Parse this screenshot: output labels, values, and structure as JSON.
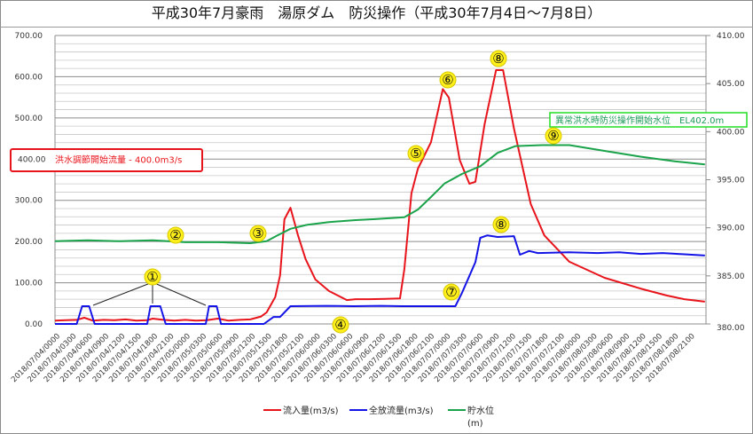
{
  "chart_data": {
    "type": "line",
    "title": "平成30年7月豪雨　湯原ダム　防災操作（平成30年7月4日～7月8日）",
    "x_unit": "hours since 2018/07/04 00:00",
    "xlim": [
      0,
      120
    ],
    "x_tick_labels": [
      "2018/07/04/0000",
      "2018/07/04/0300",
      "2018/07/04/0600",
      "2018/07/04/0900",
      "2018/07/04/1200",
      "2018/07/04/1500",
      "2018/07/04/1800",
      "2018/07/04/2100",
      "2018/07/05/0000",
      "2018/07/05/0300",
      "2018/07/05/0600",
      "2018/07/05/0900",
      "2018/07/05/1200",
      "2018/07/05/1500",
      "2018/07/05/1800",
      "2018/07/05/2100",
      "2018/07/06/0000",
      "2018/07/06/0300",
      "2018/07/06/0600",
      "2018/07/06/0900",
      "2018/07/06/1200",
      "2018/07/06/1500",
      "2018/07/06/1800",
      "2018/07/06/2100",
      "2018/07/07/0000",
      "2018/07/07/0300",
      "2018/07/07/0600",
      "2018/07/07/0900",
      "2018/07/07/1200",
      "2018/07/07/1500",
      "2018/07/07/1800",
      "2018/07/07/2100",
      "2018/07/08/0000",
      "2018/07/08/0300",
      "2018/07/08/0600",
      "2018/07/08/0900",
      "2018/07/08/1200",
      "2018/07/08/1500",
      "2018/07/08/1800",
      "2018/07/08/2100"
    ],
    "y_left": {
      "ylim": [
        0,
        700
      ],
      "ticks": [
        "0.00",
        "100.00",
        "200.00",
        "300.00",
        "400.00",
        "500.00",
        "600.00",
        "700.00"
      ]
    },
    "y_right": {
      "ylim": [
        380,
        410
      ],
      "ticks": [
        "380.00",
        "385.00",
        "390.00",
        "395.00",
        "400.00",
        "405.00",
        "410.00"
      ]
    },
    "grid": true,
    "legend_position": "bottom",
    "series": [
      {
        "name": "流入量(m3/s)",
        "axis": "left",
        "color": "#e8141c",
        "points": [
          [
            0,
            8
          ],
          [
            2,
            9
          ],
          [
            4,
            10
          ],
          [
            5.4,
            15
          ],
          [
            7,
            8
          ],
          [
            9,
            10
          ],
          [
            11,
            9
          ],
          [
            13,
            11
          ],
          [
            15,
            8
          ],
          [
            17,
            9
          ],
          [
            18,
            13
          ],
          [
            20,
            10
          ],
          [
            22,
            8
          ],
          [
            24,
            10
          ],
          [
            26,
            8
          ],
          [
            28,
            9
          ],
          [
            30,
            13
          ],
          [
            32,
            8
          ],
          [
            34,
            10
          ],
          [
            36,
            11
          ],
          [
            38,
            18
          ],
          [
            39,
            28
          ],
          [
            40.6,
            65
          ],
          [
            41.5,
            118
          ],
          [
            42.3,
            254
          ],
          [
            43.4,
            282
          ],
          [
            44.8,
            215
          ],
          [
            46.2,
            157
          ],
          [
            48,
            108
          ],
          [
            50.5,
            80
          ],
          [
            53.8,
            58
          ],
          [
            55.4,
            60
          ],
          [
            58,
            60
          ],
          [
            61,
            61
          ],
          [
            63.6,
            62
          ],
          [
            64.4,
            133
          ],
          [
            65.7,
            317
          ],
          [
            66.9,
            377
          ],
          [
            69.3,
            441
          ],
          [
            71.5,
            570
          ],
          [
            72.6,
            549
          ],
          [
            74.6,
            398
          ],
          [
            76.4,
            340
          ],
          [
            77.5,
            345
          ],
          [
            79.2,
            485
          ],
          [
            81.3,
            616
          ],
          [
            82.6,
            616
          ],
          [
            84.6,
            474
          ],
          [
            87.7,
            291
          ],
          [
            90.2,
            215
          ],
          [
            94.8,
            151
          ],
          [
            101.3,
            112
          ],
          [
            107.9,
            86
          ],
          [
            112.8,
            69
          ],
          [
            116,
            60
          ],
          [
            119.8,
            54
          ]
        ]
      },
      {
        "name": "全放流量(m3/s)",
        "axis": "left",
        "color": "#1414e6",
        "points": [
          [
            0,
            0
          ],
          [
            4,
            0
          ],
          [
            5,
            43
          ],
          [
            6.3,
            43
          ],
          [
            7.3,
            0
          ],
          [
            17,
            0
          ],
          [
            17.6,
            43
          ],
          [
            19.4,
            43
          ],
          [
            20.4,
            0
          ],
          [
            27.8,
            0
          ],
          [
            28.4,
            43
          ],
          [
            29.8,
            43
          ],
          [
            30.6,
            0
          ],
          [
            38.5,
            0
          ],
          [
            40.3,
            17
          ],
          [
            41.5,
            17
          ],
          [
            43.4,
            43
          ],
          [
            50,
            44
          ],
          [
            55,
            43
          ],
          [
            60,
            44
          ],
          [
            64,
            43
          ],
          [
            70,
            43
          ],
          [
            73.8,
            43
          ],
          [
            75,
            75
          ],
          [
            77.5,
            150
          ],
          [
            78.4,
            209
          ],
          [
            79.7,
            215
          ],
          [
            81.6,
            211
          ],
          [
            84.6,
            213
          ],
          [
            85.7,
            168
          ],
          [
            87.4,
            177
          ],
          [
            89,
            172
          ],
          [
            94.8,
            174
          ],
          [
            100,
            172
          ],
          [
            104,
            174
          ],
          [
            108,
            170
          ],
          [
            112,
            172
          ],
          [
            116,
            169
          ],
          [
            119.8,
            166
          ]
        ]
      },
      {
        "name": "貯水位",
        "unit": "(m)",
        "axis": "right",
        "color": "#1aa34a",
        "points": [
          [
            0,
            388.6
          ],
          [
            6,
            388.7
          ],
          [
            12,
            388.6
          ],
          [
            18,
            388.7
          ],
          [
            24,
            388.5
          ],
          [
            30,
            388.5
          ],
          [
            36,
            388.4
          ],
          [
            39,
            388.6
          ],
          [
            41,
            389.2
          ],
          [
            43.4,
            389.9
          ],
          [
            46.4,
            390.3
          ],
          [
            50.5,
            390.6
          ],
          [
            55.4,
            390.8
          ],
          [
            59,
            390.9
          ],
          [
            64.4,
            391.1
          ],
          [
            66.9,
            391.9
          ],
          [
            69.3,
            393.2
          ],
          [
            71.8,
            394.6
          ],
          [
            75,
            395.6
          ],
          [
            78.4,
            396.4
          ],
          [
            81.6,
            397.8
          ],
          [
            84.9,
            398.5
          ],
          [
            89.8,
            398.6
          ],
          [
            94.8,
            398.6
          ],
          [
            101.3,
            398.0
          ],
          [
            107.9,
            397.4
          ],
          [
            114.4,
            396.9
          ],
          [
            119.8,
            396.6
          ]
        ]
      }
    ],
    "annotations": {
      "flood_control_start": "洪水調節開始流量 - 400.0m3/s",
      "flood_control_value": 400,
      "abnormal_operation_start": "異常洪水時防災操作開始水位　EL402.0m",
      "markers": [
        "①",
        "②",
        "③",
        "④",
        "⑤",
        "⑥",
        "⑦",
        "⑧",
        "⑧",
        "⑨"
      ]
    }
  }
}
